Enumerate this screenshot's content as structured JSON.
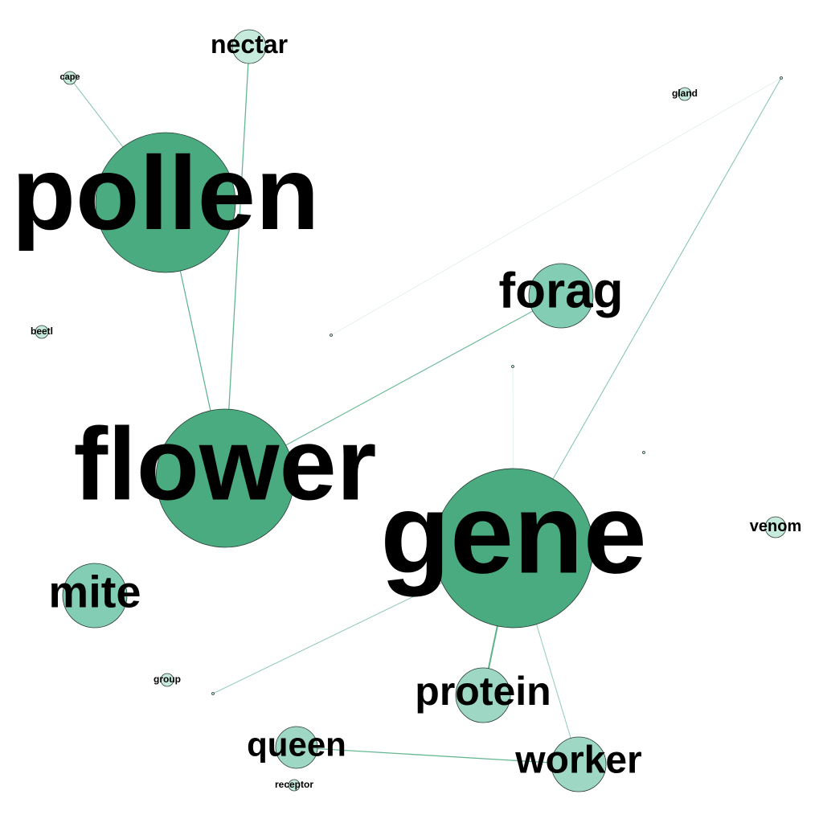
{
  "colors": {
    "background": "#ffffff",
    "node_strong": "#4aaa80",
    "node_mid": "#82cdb4",
    "node_light": "#9ed8c4",
    "node_pale": "#c6eadc",
    "edge": "#4aaa80"
  },
  "nodes": [
    {
      "id": "pollen",
      "label": "pollen",
      "shade": "node_strong"
    },
    {
      "id": "flower",
      "label": "flower",
      "shade": "node_strong"
    },
    {
      "id": "gene",
      "label": "gene",
      "shade": "node_strong"
    },
    {
      "id": "forag",
      "label": "forag",
      "shade": "node_mid"
    },
    {
      "id": "mite",
      "label": "mite",
      "shade": "node_mid"
    },
    {
      "id": "protein",
      "label": "protein",
      "shade": "node_light"
    },
    {
      "id": "worker",
      "label": "worker",
      "shade": "node_light"
    },
    {
      "id": "queen",
      "label": "queen",
      "shade": "node_light"
    },
    {
      "id": "nectar",
      "label": "nectar",
      "shade": "node_pale"
    },
    {
      "id": "venom",
      "label": "venom",
      "shade": "node_pale"
    },
    {
      "id": "cape",
      "label": "cape",
      "shade": "node_pale"
    },
    {
      "id": "gland",
      "label": "gland",
      "shade": "node_pale"
    },
    {
      "id": "beetl",
      "label": "beetl",
      "shade": "node_pale"
    },
    {
      "id": "group",
      "label": "group",
      "shade": "node_pale"
    },
    {
      "id": "receptor",
      "label": "receptor",
      "shade": "node_pale"
    },
    {
      "id": "tiny1",
      "label": "",
      "shade": "node_pale"
    },
    {
      "id": "tiny2",
      "label": "",
      "shade": "node_pale"
    },
    {
      "id": "tiny3",
      "label": "",
      "shade": "node_pale"
    },
    {
      "id": "tiny4",
      "label": "",
      "shade": "node_pale"
    },
    {
      "id": "tiny5",
      "label": "",
      "shade": "node_pale"
    }
  ],
  "edges": [
    {
      "source": "pollen",
      "target": "flower"
    },
    {
      "source": "pollen",
      "target": "cape"
    },
    {
      "source": "nectar",
      "target": "flower"
    },
    {
      "source": "flower",
      "target": "forag"
    },
    {
      "source": "gene",
      "target": "protein"
    },
    {
      "source": "gene",
      "target": "worker"
    },
    {
      "source": "gene",
      "target": "tiny1"
    },
    {
      "source": "gene",
      "target": "tiny3"
    },
    {
      "source": "gene",
      "target": "tiny5"
    },
    {
      "source": "queen",
      "target": "worker"
    },
    {
      "source": "tiny1",
      "target": "tiny2"
    }
  ]
}
